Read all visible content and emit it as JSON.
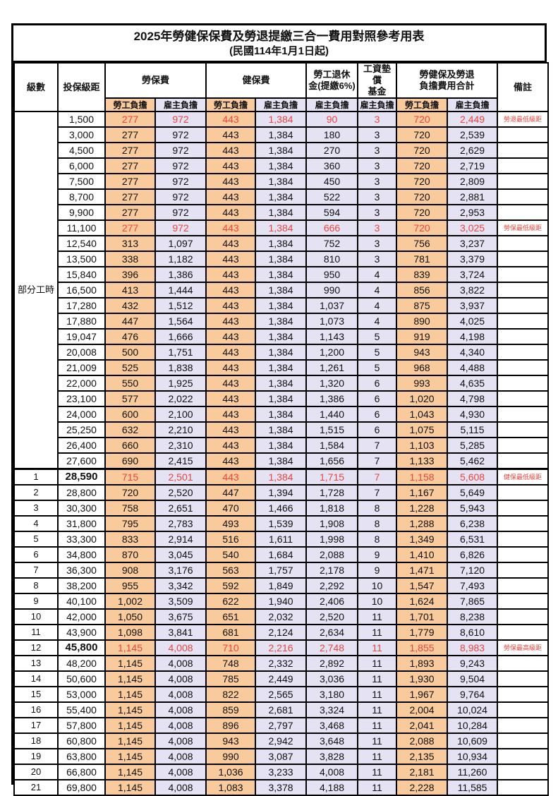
{
  "title": "2025年勞健保保費及勞退提繳三合一費用對照參考用表",
  "subtitle": "(民國114年1月1日起)",
  "header": {
    "level": "級數",
    "bracket": "投保級距",
    "labor_fee": "勞保費",
    "health_fee": "健保費",
    "pension_l1": "勞工退休",
    "pension_l2": "金(提繳6%)",
    "wage_fund_l1": "工資墊償",
    "wage_fund_l2": "基金",
    "total_l1": "勞健保及勞退",
    "total_l2": "負擔費用合計",
    "remark": "備註",
    "employee_share": "勞工負擔",
    "employer_share": "雇主負擔"
  },
  "group_label": "部分工時",
  "group_rowspan": 23,
  "colors": {
    "cell_orange": "#f9ca9c",
    "cell_lavender": "#e4e2f3",
    "highlight_red": "#e8463e",
    "border_black": "#000000"
  },
  "rows": [
    {
      "level": "",
      "bracket": "1,500",
      "v": [
        "277",
        "972",
        "443",
        "1,384",
        "90",
        "3",
        "720",
        "2,449"
      ],
      "remark": "勞退最低級距",
      "red": true
    },
    {
      "level": "",
      "bracket": "3,000",
      "v": [
        "277",
        "972",
        "443",
        "1,384",
        "180",
        "3",
        "720",
        "2,539"
      ],
      "remark": ""
    },
    {
      "level": "",
      "bracket": "4,500",
      "v": [
        "277",
        "972",
        "443",
        "1,384",
        "270",
        "3",
        "720",
        "2,629"
      ],
      "remark": ""
    },
    {
      "level": "",
      "bracket": "6,000",
      "v": [
        "277",
        "972",
        "443",
        "1,384",
        "360",
        "3",
        "720",
        "2,719"
      ],
      "remark": ""
    },
    {
      "level": "",
      "bracket": "7,500",
      "v": [
        "277",
        "972",
        "443",
        "1,384",
        "450",
        "3",
        "720",
        "2,809"
      ],
      "remark": ""
    },
    {
      "level": "",
      "bracket": "8,700",
      "v": [
        "277",
        "972",
        "443",
        "1,384",
        "522",
        "3",
        "720",
        "2,881"
      ],
      "remark": ""
    },
    {
      "level": "",
      "bracket": "9,900",
      "v": [
        "277",
        "972",
        "443",
        "1,384",
        "594",
        "3",
        "720",
        "2,953"
      ],
      "remark": ""
    },
    {
      "level": "",
      "bracket": "11,100",
      "v": [
        "277",
        "972",
        "443",
        "1,384",
        "666",
        "3",
        "720",
        "3,025"
      ],
      "remark": "勞保最低級距",
      "red": true
    },
    {
      "level": "",
      "bracket": "12,540",
      "v": [
        "313",
        "1,097",
        "443",
        "1,384",
        "752",
        "3",
        "756",
        "3,237"
      ],
      "remark": ""
    },
    {
      "level": "",
      "bracket": "13,500",
      "v": [
        "338",
        "1,182",
        "443",
        "1,384",
        "810",
        "3",
        "781",
        "3,379"
      ],
      "remark": ""
    },
    {
      "level": "",
      "bracket": "15,840",
      "v": [
        "396",
        "1,386",
        "443",
        "1,384",
        "950",
        "4",
        "839",
        "3,724"
      ],
      "remark": ""
    },
    {
      "level": "",
      "bracket": "16,500",
      "v": [
        "413",
        "1,444",
        "443",
        "1,384",
        "990",
        "4",
        "856",
        "3,822"
      ],
      "remark": ""
    },
    {
      "level": "",
      "bracket": "17,280",
      "v": [
        "432",
        "1,512",
        "443",
        "1,384",
        "1,037",
        "4",
        "875",
        "3,937"
      ],
      "remark": ""
    },
    {
      "level": "",
      "bracket": "17,880",
      "v": [
        "447",
        "1,564",
        "443",
        "1,384",
        "1,073",
        "4",
        "890",
        "4,025"
      ],
      "remark": ""
    },
    {
      "level": "",
      "bracket": "19,047",
      "v": [
        "476",
        "1,666",
        "443",
        "1,384",
        "1,143",
        "5",
        "919",
        "4,198"
      ],
      "remark": ""
    },
    {
      "level": "",
      "bracket": "20,008",
      "v": [
        "500",
        "1,751",
        "443",
        "1,384",
        "1,200",
        "5",
        "943",
        "4,340"
      ],
      "remark": ""
    },
    {
      "level": "",
      "bracket": "21,009",
      "v": [
        "525",
        "1,838",
        "443",
        "1,384",
        "1,261",
        "5",
        "968",
        "4,488"
      ],
      "remark": ""
    },
    {
      "level": "",
      "bracket": "22,000",
      "v": [
        "550",
        "1,925",
        "443",
        "1,384",
        "1,320",
        "6",
        "993",
        "4,635"
      ],
      "remark": ""
    },
    {
      "level": "",
      "bracket": "23,100",
      "v": [
        "577",
        "2,022",
        "443",
        "1,384",
        "1,386",
        "6",
        "1,020",
        "4,798"
      ],
      "remark": ""
    },
    {
      "level": "",
      "bracket": "24,000",
      "v": [
        "600",
        "2,100",
        "443",
        "1,384",
        "1,440",
        "6",
        "1,043",
        "4,930"
      ],
      "remark": ""
    },
    {
      "level": "",
      "bracket": "25,250",
      "v": [
        "632",
        "2,210",
        "443",
        "1,384",
        "1,515",
        "6",
        "1,075",
        "5,115"
      ],
      "remark": ""
    },
    {
      "level": "",
      "bracket": "26,400",
      "v": [
        "660",
        "2,310",
        "443",
        "1,384",
        "1,584",
        "7",
        "1,103",
        "5,285"
      ],
      "remark": ""
    },
    {
      "level": "",
      "bracket": "27,600",
      "v": [
        "690",
        "2,415",
        "443",
        "1,384",
        "1,656",
        "7",
        "1,133",
        "5,462"
      ],
      "remark": ""
    },
    {
      "level": "1",
      "bracket": "28,590",
      "v": [
        "715",
        "2,501",
        "443",
        "1,384",
        "1,715",
        "7",
        "1,158",
        "5,608"
      ],
      "remark": "健保最低級距",
      "red": true,
      "bold": true,
      "sep": true
    },
    {
      "level": "2",
      "bracket": "28,800",
      "v": [
        "720",
        "2,520",
        "447",
        "1,394",
        "1,728",
        "7",
        "1,167",
        "5,649"
      ],
      "remark": ""
    },
    {
      "level": "3",
      "bracket": "30,300",
      "v": [
        "758",
        "2,651",
        "470",
        "1,466",
        "1,818",
        "8",
        "1,228",
        "5,943"
      ],
      "remark": ""
    },
    {
      "level": "4",
      "bracket": "31,800",
      "v": [
        "795",
        "2,783",
        "493",
        "1,539",
        "1,908",
        "8",
        "1,288",
        "6,238"
      ],
      "remark": ""
    },
    {
      "level": "5",
      "bracket": "33,300",
      "v": [
        "833",
        "2,914",
        "516",
        "1,611",
        "1,998",
        "8",
        "1,349",
        "6,531"
      ],
      "remark": ""
    },
    {
      "level": "6",
      "bracket": "34,800",
      "v": [
        "870",
        "3,045",
        "540",
        "1,684",
        "2,088",
        "9",
        "1,410",
        "6,826"
      ],
      "remark": ""
    },
    {
      "level": "7",
      "bracket": "36,300",
      "v": [
        "908",
        "3,176",
        "563",
        "1,757",
        "2,178",
        "9",
        "1,471",
        "7,120"
      ],
      "remark": ""
    },
    {
      "level": "8",
      "bracket": "38,200",
      "v": [
        "955",
        "3,342",
        "592",
        "1,849",
        "2,292",
        "10",
        "1,547",
        "7,493"
      ],
      "remark": ""
    },
    {
      "level": "9",
      "bracket": "40,100",
      "v": [
        "1,002",
        "3,509",
        "622",
        "1,940",
        "2,406",
        "10",
        "1,624",
        "7,865"
      ],
      "remark": ""
    },
    {
      "level": "10",
      "bracket": "42,000",
      "v": [
        "1,050",
        "3,675",
        "651",
        "2,032",
        "2,520",
        "11",
        "1,701",
        "8,238"
      ],
      "remark": ""
    },
    {
      "level": "11",
      "bracket": "43,900",
      "v": [
        "1,098",
        "3,841",
        "681",
        "2,124",
        "2,634",
        "11",
        "1,779",
        "8,610"
      ],
      "remark": ""
    },
    {
      "level": "12",
      "bracket": "45,800",
      "v": [
        "1,145",
        "4,008",
        "710",
        "2,216",
        "2,748",
        "11",
        "1,855",
        "8,983"
      ],
      "remark": "勞保最高級距",
      "red": true,
      "bold": true
    },
    {
      "level": "13",
      "bracket": "48,200",
      "v": [
        "1,145",
        "4,008",
        "748",
        "2,332",
        "2,892",
        "11",
        "1,893",
        "9,243"
      ],
      "remark": ""
    },
    {
      "level": "14",
      "bracket": "50,600",
      "v": [
        "1,145",
        "4,008",
        "785",
        "2,449",
        "3,036",
        "11",
        "1,930",
        "9,504"
      ],
      "remark": ""
    },
    {
      "level": "15",
      "bracket": "53,000",
      "v": [
        "1,145",
        "4,008",
        "822",
        "2,565",
        "3,180",
        "11",
        "1,967",
        "9,764"
      ],
      "remark": ""
    },
    {
      "level": "16",
      "bracket": "55,400",
      "v": [
        "1,145",
        "4,008",
        "859",
        "2,681",
        "3,324",
        "11",
        "2,004",
        "10,024"
      ],
      "remark": ""
    },
    {
      "level": "17",
      "bracket": "57,800",
      "v": [
        "1,145",
        "4,008",
        "896",
        "2,797",
        "3,468",
        "11",
        "2,041",
        "10,284"
      ],
      "remark": ""
    },
    {
      "level": "18",
      "bracket": "60,800",
      "v": [
        "1,145",
        "4,008",
        "943",
        "2,942",
        "3,648",
        "11",
        "2,088",
        "10,609"
      ],
      "remark": ""
    },
    {
      "level": "19",
      "bracket": "63,800",
      "v": [
        "1,145",
        "4,008",
        "990",
        "3,087",
        "3,828",
        "11",
        "2,135",
        "10,934"
      ],
      "remark": ""
    },
    {
      "level": "20",
      "bracket": "66,800",
      "v": [
        "1,145",
        "4,008",
        "1,036",
        "3,233",
        "4,008",
        "11",
        "2,181",
        "11,260"
      ],
      "remark": ""
    },
    {
      "level": "21",
      "bracket": "69,800",
      "v": [
        "1,145",
        "4,008",
        "1,083",
        "3,378",
        "4,188",
        "11",
        "2,228",
        "11,585"
      ],
      "remark": ""
    }
  ]
}
